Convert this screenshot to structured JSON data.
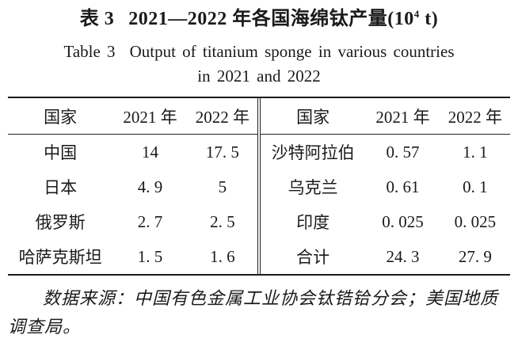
{
  "colors": {
    "ink": "#1a1a1a",
    "background": "#ffffff"
  },
  "title": {
    "zh_label": "表 3",
    "zh_main_pre": "2021—2022 年各国海绵钛产量(10",
    "zh_sup": "4",
    "zh_main_post": " t)",
    "en_label": "Table 3",
    "en_line1": "Output of titanium sponge in various countries",
    "en_line2": "in 2021 and 2022"
  },
  "table": {
    "left": {
      "headers": [
        "国家",
        "2021 年",
        "2022 年"
      ],
      "rows": [
        [
          "中国",
          "14",
          "17. 5"
        ],
        [
          "日本",
          "4. 9",
          "5"
        ],
        [
          "俄罗斯",
          "2. 7",
          "2. 5"
        ],
        [
          "哈萨克斯坦",
          "1. 5",
          "1. 6"
        ]
      ]
    },
    "right": {
      "headers": [
        "国家",
        "2021 年",
        "2022 年"
      ],
      "rows": [
        [
          "沙特阿拉伯",
          "0. 57",
          "1. 1"
        ],
        [
          "乌克兰",
          "0. 61",
          "0. 1"
        ],
        [
          "印度",
          "0. 025",
          "0. 025"
        ],
        [
          "合计",
          "24. 3",
          "27. 9"
        ]
      ]
    }
  },
  "source_note": "数据来源：中国有色金属工业协会钛锆铪分会；美国地质调查局。"
}
